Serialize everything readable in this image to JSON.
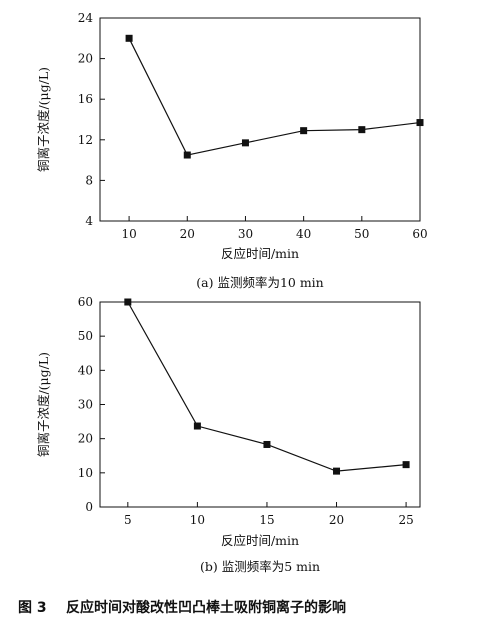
{
  "figure": {
    "caption_number": "图 3",
    "caption_text": "反应时间对酸改性凹凸棒土吸附铜离子的影响"
  },
  "chart_data": [
    {
      "type": "line",
      "caption": "(a) 监测频率为10 min",
      "xlabel": "反应时间/min",
      "ylabel": "铜离子浓度/(μg/L)",
      "xlim": [
        5,
        60
      ],
      "ylim": [
        4,
        24
      ],
      "xticks": [
        10,
        20,
        30,
        40,
        50,
        60
      ],
      "yticks": [
        4,
        8,
        12,
        16,
        20,
        24
      ],
      "grid": false,
      "legend": "none",
      "series": [
        {
          "x": [
            10,
            20,
            30,
            40,
            50,
            60
          ],
          "values": [
            22.0,
            10.5,
            11.7,
            12.9,
            13.0,
            13.7
          ]
        }
      ]
    },
    {
      "type": "line",
      "caption": "(b) 监测频率为5 min",
      "xlabel": "反应时间/min",
      "ylabel": "铜离子浓度/(μg/L)",
      "xlim": [
        3,
        26
      ],
      "ylim": [
        0,
        60
      ],
      "xticks": [
        5,
        10,
        15,
        20,
        25
      ],
      "yticks": [
        0,
        10,
        20,
        30,
        40,
        50,
        60
      ],
      "grid": false,
      "legend": "none",
      "series": [
        {
          "x": [
            5,
            10,
            15,
            20,
            25
          ],
          "values": [
            60.0,
            23.7,
            18.3,
            10.5,
            12.4
          ]
        }
      ]
    }
  ]
}
